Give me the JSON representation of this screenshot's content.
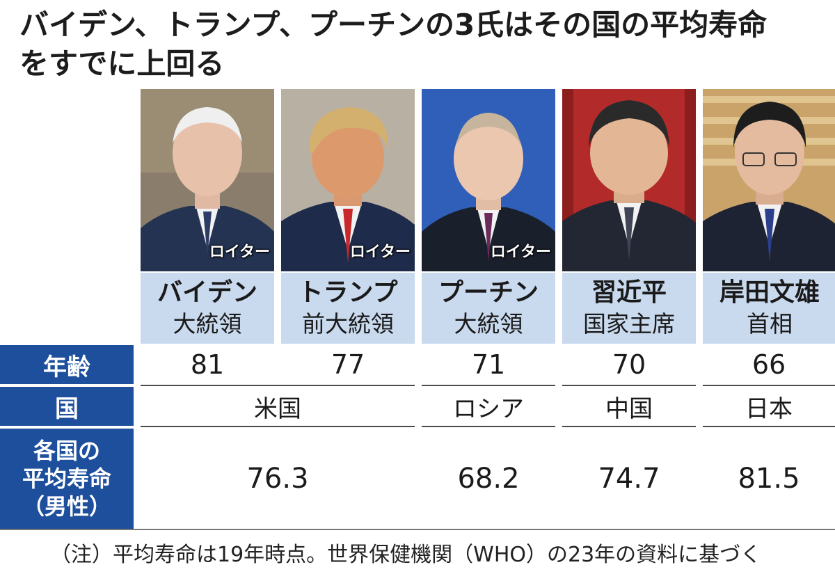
{
  "headline": {
    "line1": "バイデン、トランプ、プーチンの3氏はその国の平均寿命",
    "line2": "をすでに上回る"
  },
  "row_labels": {
    "age": "年齢",
    "country": "国",
    "life_line1": "各国の",
    "life_line2": "平均寿命",
    "life_line3": "（男性）"
  },
  "people": [
    {
      "name": "バイデン",
      "title": "大統領",
      "credit": "ロイター",
      "age": "81",
      "bg": "#8a7d6c",
      "suit": "#243352",
      "tie": "#2c3c64"
    },
    {
      "name": "トランプ",
      "title": "前大統領",
      "credit": "ロイター",
      "age": "77",
      "bg": "#b9b0a4",
      "suit": "#1f2b4a",
      "tie": "#c8282c"
    },
    {
      "name": "プーチン",
      "title": "大統領",
      "credit": "ロイター",
      "age": "71",
      "bg": "#2f5fb8",
      "suit": "#1a1f2c",
      "tie": "#6a2a5a"
    },
    {
      "name": "習近平",
      "title": "国家主席",
      "credit": "",
      "age": "70",
      "bg": "#b22a2a",
      "suit": "#232733",
      "tie": "#3f4556"
    },
    {
      "name": "岸田文雄",
      "title": "首相",
      "credit": "",
      "age": "66",
      "bg": "#c9a36a",
      "suit": "#1e2333",
      "tie": "#2c3f8c"
    }
  ],
  "countries": [
    {
      "name": "米国",
      "life": "76.3"
    },
    {
      "name": "ロシア",
      "life": "68.2"
    },
    {
      "name": "中国",
      "life": "74.7"
    },
    {
      "name": "日本",
      "life": "81.5"
    }
  ],
  "footer": "（注）平均寿命は19年時点。世界保健機関（WHO）の23年の資料に基づく",
  "colors": {
    "label_bg": "#1d4f9c",
    "name_bg": "#c9d9ee"
  }
}
